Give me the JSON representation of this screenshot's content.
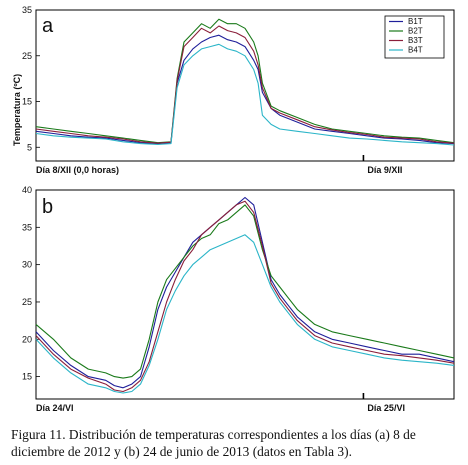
{
  "caption": "Figura 11. Distribución de temperaturas correspondientes a los días (a) 8 de diciembre de 2012 y (b) 24 de junio de 2013 (datos en Tabla 3).",
  "chart_data": [
    {
      "type": "line",
      "panel_label": "a",
      "ylabel": "Temperatura (ºC)",
      "ylim": [
        2,
        35
      ],
      "yticks": [
        5,
        15,
        25,
        35
      ],
      "xlim": [
        0,
        48
      ],
      "x_markers": [
        {
          "x": 0,
          "label": "Día 8/XII (0,0 horas)"
        },
        {
          "x": 37.6,
          "label": "Día 9/XII"
        }
      ],
      "legend": {
        "placement": "top-right",
        "entries": [
          "B1T",
          "B2T",
          "B3T",
          "B4T"
        ]
      },
      "colors": [
        "#1f1f9a",
        "#1a7a1a",
        "#8a1f3a",
        "#2bb5c8"
      ],
      "series": [
        {
          "name": "B1T",
          "x": [
            0,
            2,
            4,
            6,
            8,
            10,
            12,
            14,
            15.5,
            16.2,
            17,
            18,
            19,
            20,
            21,
            22,
            23,
            24,
            25,
            25.5,
            26,
            27,
            28,
            30,
            32,
            34,
            36,
            38,
            40,
            42,
            44,
            46,
            48
          ],
          "y": [
            8.5,
            8,
            7.5,
            7.2,
            7,
            6.5,
            6,
            5.8,
            6,
            19,
            24,
            26.5,
            28,
            29,
            29.5,
            28.5,
            28,
            27,
            24,
            22,
            17,
            13.5,
            12,
            10.5,
            9,
            8.5,
            8,
            7.5,
            7,
            6.8,
            6.5,
            6,
            5.8
          ]
        },
        {
          "name": "B2T",
          "x": [
            0,
            2,
            4,
            6,
            8,
            10,
            12,
            14,
            15.5,
            16.2,
            17,
            18,
            19,
            20,
            21,
            22,
            23,
            24,
            25,
            25.5,
            26,
            27,
            28,
            30,
            32,
            34,
            36,
            38,
            40,
            42,
            44,
            46,
            48
          ],
          "y": [
            9.5,
            9,
            8.5,
            8,
            7.5,
            7,
            6.5,
            6,
            6.2,
            20,
            28,
            30,
            32,
            31,
            33,
            32,
            32,
            31,
            28,
            25,
            19,
            14,
            13,
            11.5,
            10,
            9,
            8.5,
            8,
            7.5,
            7.2,
            7,
            6.5,
            6
          ]
        },
        {
          "name": "B3T",
          "x": [
            0,
            2,
            4,
            6,
            8,
            10,
            12,
            14,
            15.5,
            16.2,
            17,
            18,
            19,
            20,
            21,
            22,
            23,
            24,
            25,
            25.5,
            26,
            27,
            28,
            30,
            32,
            34,
            36,
            38,
            40,
            42,
            44,
            46,
            48
          ],
          "y": [
            9,
            8.5,
            8,
            7.5,
            7.2,
            6.8,
            6.2,
            5.9,
            6.1,
            19.5,
            27,
            29,
            31,
            30,
            31.5,
            30.5,
            30,
            29,
            26,
            23,
            18,
            13.5,
            12.5,
            11,
            9.5,
            8.8,
            8.2,
            7.8,
            7.2,
            7,
            6.8,
            6.2,
            5.9
          ]
        },
        {
          "name": "B4T",
          "x": [
            0,
            2,
            4,
            6,
            8,
            10,
            12,
            14,
            15.5,
            16.2,
            17,
            18,
            19,
            20,
            21,
            22,
            23,
            24,
            25,
            25.5,
            26,
            27,
            28,
            30,
            32,
            34,
            36,
            38,
            40,
            42,
            44,
            46,
            48
          ],
          "y": [
            8,
            7.5,
            7.2,
            7,
            6.8,
            6.2,
            5.8,
            5.6,
            5.8,
            18,
            23,
            25,
            26.5,
            27,
            27.5,
            26.5,
            26,
            25,
            22,
            19,
            12,
            10,
            9,
            8.5,
            8,
            7.5,
            7,
            6.8,
            6.5,
            6.2,
            6,
            5.8,
            5.5
          ]
        }
      ]
    },
    {
      "type": "line",
      "panel_label": "b",
      "ylim": [
        12,
        40
      ],
      "yticks": [
        15,
        20,
        25,
        30,
        35,
        40
      ],
      "xlim": [
        0,
        48
      ],
      "x_markers": [
        {
          "x": 0,
          "label": "Día 24/VI"
        },
        {
          "x": 37.6,
          "label": "Día 25/VI"
        }
      ],
      "colors": [
        "#1f1f9a",
        "#1a7a1a",
        "#8a1f3a",
        "#2bb5c8"
      ],
      "series": [
        {
          "name": "B1T",
          "x": [
            0,
            2,
            4,
            6,
            8,
            9,
            10,
            11,
            12,
            13,
            14,
            15,
            16,
            17,
            18,
            19,
            20,
            21,
            22,
            23,
            24,
            25,
            26,
            27,
            28,
            29,
            30,
            32,
            34,
            36,
            38,
            40,
            42,
            44,
            46,
            48
          ],
          "y": [
            21,
            18.5,
            16.5,
            15,
            14.5,
            13.8,
            13.5,
            14,
            15,
            19,
            24,
            27,
            29,
            31,
            33,
            34,
            35,
            36,
            37,
            38,
            39,
            38,
            33,
            28,
            26,
            24.5,
            23,
            21,
            20,
            19.5,
            19,
            18.5,
            18,
            18,
            17.5,
            17
          ]
        },
        {
          "name": "B2T",
          "x": [
            0,
            2,
            4,
            6,
            8,
            9,
            10,
            11,
            12,
            13,
            14,
            15,
            16,
            17,
            18,
            19,
            20,
            21,
            22,
            23,
            24,
            25,
            26,
            27,
            28,
            29,
            30,
            32,
            34,
            36,
            38,
            40,
            42,
            44,
            46,
            48
          ],
          "y": [
            22,
            20,
            17.5,
            16,
            15.5,
            15,
            14.8,
            15,
            16,
            20,
            25,
            28,
            29.5,
            31,
            32.5,
            33.5,
            34,
            35.5,
            36,
            37,
            38,
            36.5,
            32,
            28.5,
            27,
            25.5,
            24,
            22,
            21,
            20.5,
            20,
            19.5,
            19,
            18.5,
            18,
            17.5
          ]
        },
        {
          "name": "B3T",
          "x": [
            0,
            2,
            4,
            6,
            8,
            9,
            10,
            11,
            12,
            13,
            14,
            15,
            16,
            17,
            18,
            19,
            20,
            21,
            22,
            23,
            24,
            25,
            26,
            27,
            28,
            29,
            30,
            32,
            34,
            36,
            38,
            40,
            42,
            44,
            46,
            48
          ],
          "y": [
            20.5,
            18,
            16,
            14.8,
            14,
            13.2,
            13,
            13.5,
            14.5,
            17,
            21,
            25,
            28,
            30.5,
            32,
            34,
            35,
            36,
            37,
            38,
            38.5,
            37,
            32.5,
            27.5,
            25.5,
            24,
            22.5,
            20.5,
            19.5,
            19,
            18.5,
            18,
            17.8,
            17.5,
            17.2,
            16.8
          ]
        },
        {
          "name": "B4T",
          "x": [
            0,
            2,
            4,
            6,
            8,
            9,
            10,
            11,
            12,
            13,
            14,
            15,
            16,
            17,
            18,
            19,
            20,
            21,
            22,
            23,
            24,
            25,
            26,
            27,
            28,
            29,
            30,
            32,
            34,
            36,
            38,
            40,
            42,
            44,
            46,
            48
          ],
          "y": [
            20,
            17.5,
            15.5,
            14,
            13.5,
            13,
            12.8,
            13,
            14,
            16.5,
            20,
            24,
            26.5,
            28.5,
            30,
            31,
            32,
            32.5,
            33,
            33.5,
            34,
            33,
            30,
            27,
            25,
            23.5,
            22,
            20,
            19,
            18.5,
            18,
            17.5,
            17.2,
            17,
            16.8,
            16.5
          ]
        }
      ]
    }
  ]
}
